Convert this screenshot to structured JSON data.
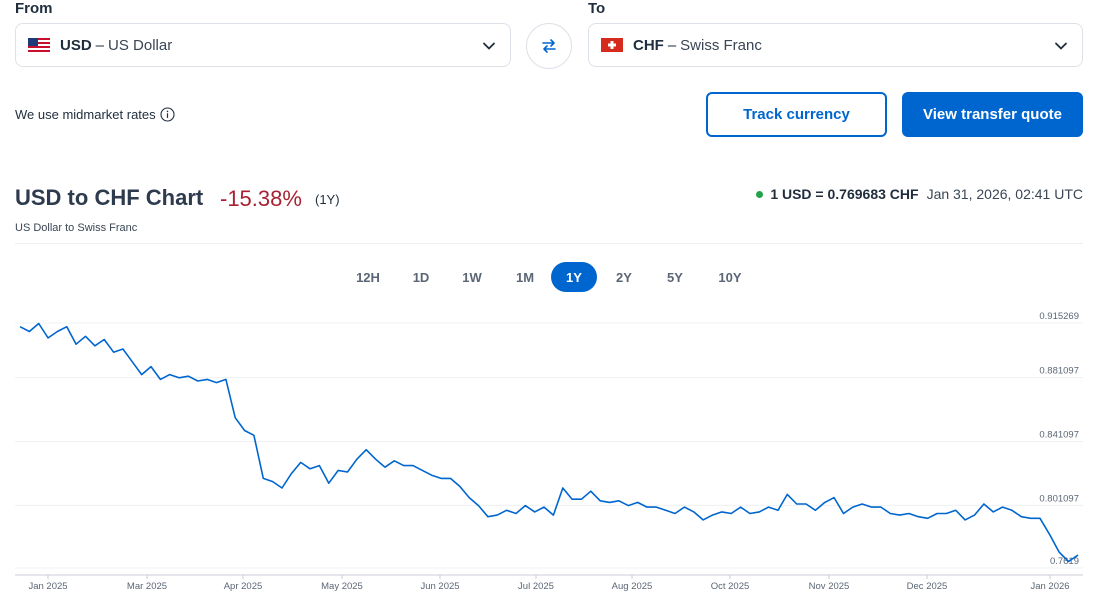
{
  "from": {
    "label": "From",
    "code": "USD",
    "dash": "–",
    "name": "US Dollar",
    "flag_icon": "us-flag-icon"
  },
  "to": {
    "label": "To",
    "code": "CHF",
    "dash": "–",
    "name": "Swiss Franc",
    "flag_icon": "ch-flag-icon"
  },
  "midmarket_text": "We use midmarket rates",
  "buttons": {
    "track": "Track currency",
    "quote": "View transfer quote"
  },
  "chart_header": {
    "title": "USD to CHF Chart",
    "change": "-15.38%",
    "period": "(1Y)",
    "subtitle": "US Dollar to Swiss Franc",
    "rate": "1 USD = 0.769683 CHF",
    "timestamp": "Jan 31, 2026, 02:41 UTC"
  },
  "tabs": [
    "12H",
    "1D",
    "1W",
    "1M",
    "1Y",
    "2Y",
    "5Y",
    "10Y"
  ],
  "active_tab": "1Y",
  "colors": {
    "accent": "#0066cf",
    "negative": "#a82234",
    "live_dot": "#22a34a"
  },
  "chart_data": {
    "type": "line",
    "y_ticks": [
      "0.915269",
      "0.881097",
      "0.841097",
      "0.801097",
      "0.7619"
    ],
    "x_ticks": [
      "Jan 2025",
      "Mar 2025",
      "Apr 2025",
      "May 2025",
      "Jun 2025",
      "Jul 2025",
      "Aug 2025",
      "Oct 2025",
      "Nov 2025",
      "Dec 2025",
      "Jan 2026"
    ],
    "ylim": [
      0.7619,
      0.9153
    ],
    "grid": true,
    "series": [
      {
        "values": [
          0.913,
          0.91,
          0.915,
          0.906,
          0.91,
          0.913,
          0.902,
          0.907,
          0.901,
          0.905,
          0.897,
          0.899,
          0.891,
          0.883,
          0.888,
          0.88,
          0.883,
          0.881,
          0.882,
          0.879,
          0.88,
          0.878,
          0.88,
          0.856,
          0.848,
          0.845,
          0.818,
          0.816,
          0.812,
          0.821,
          0.828,
          0.824,
          0.826,
          0.815,
          0.823,
          0.822,
          0.83,
          0.836,
          0.83,
          0.825,
          0.829,
          0.826,
          0.826,
          0.823,
          0.82,
          0.818,
          0.818,
          0.813,
          0.806,
          0.801,
          0.794,
          0.795,
          0.798,
          0.796,
          0.801,
          0.797,
          0.8,
          0.795,
          0.812,
          0.805,
          0.805,
          0.81,
          0.804,
          0.803,
          0.804,
          0.801,
          0.803,
          0.8,
          0.8,
          0.798,
          0.796,
          0.8,
          0.797,
          0.792,
          0.795,
          0.797,
          0.796,
          0.8,
          0.796,
          0.797,
          0.8,
          0.798,
          0.808,
          0.802,
          0.802,
          0.798,
          0.803,
          0.806,
          0.796,
          0.8,
          0.802,
          0.8,
          0.8,
          0.796,
          0.795,
          0.796,
          0.794,
          0.793,
          0.796,
          0.796,
          0.798,
          0.792,
          0.795,
          0.802,
          0.797,
          0.8,
          0.798,
          0.794,
          0.793,
          0.793
        ],
        "tail": [
          0.783,
          0.772,
          0.766,
          0.77
        ]
      }
    ]
  }
}
